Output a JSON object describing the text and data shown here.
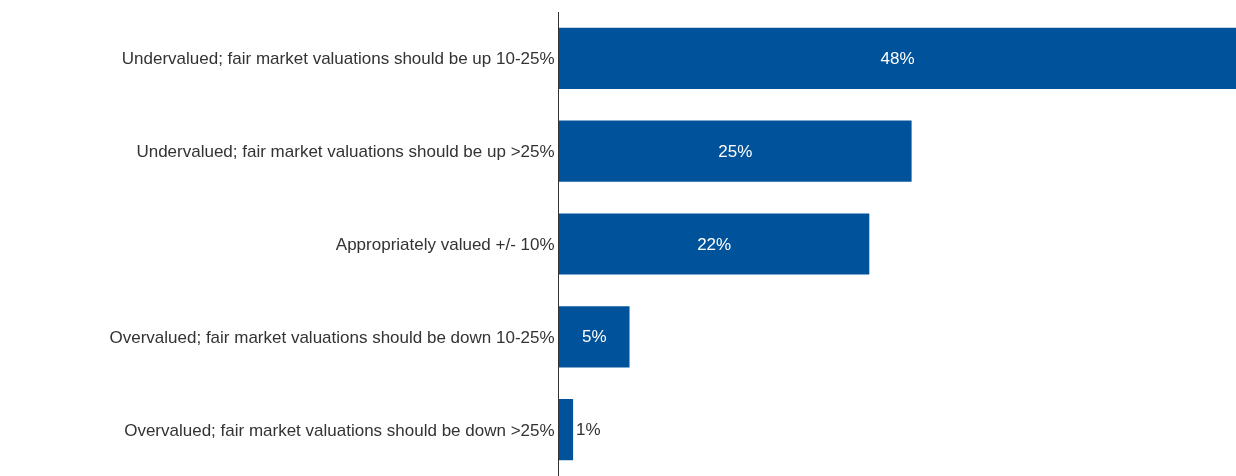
{
  "chart_data": {
    "type": "bar",
    "orientation": "horizontal",
    "categories": [
      "Undervalued; fair market valuations should be up 10-25%",
      "Undervalued; fair market valuations should be up >25%",
      "Appropriately valued +/- 10%",
      "Overvalued; fair market valuations should be down 10-25%",
      "Overvalued; fair market valuations should be down >25%"
    ],
    "values": [
      48,
      25,
      22,
      5,
      1
    ],
    "value_labels": [
      "48%",
      "25%",
      "22%",
      "5%",
      "1%"
    ],
    "color": "#00529b"
  }
}
